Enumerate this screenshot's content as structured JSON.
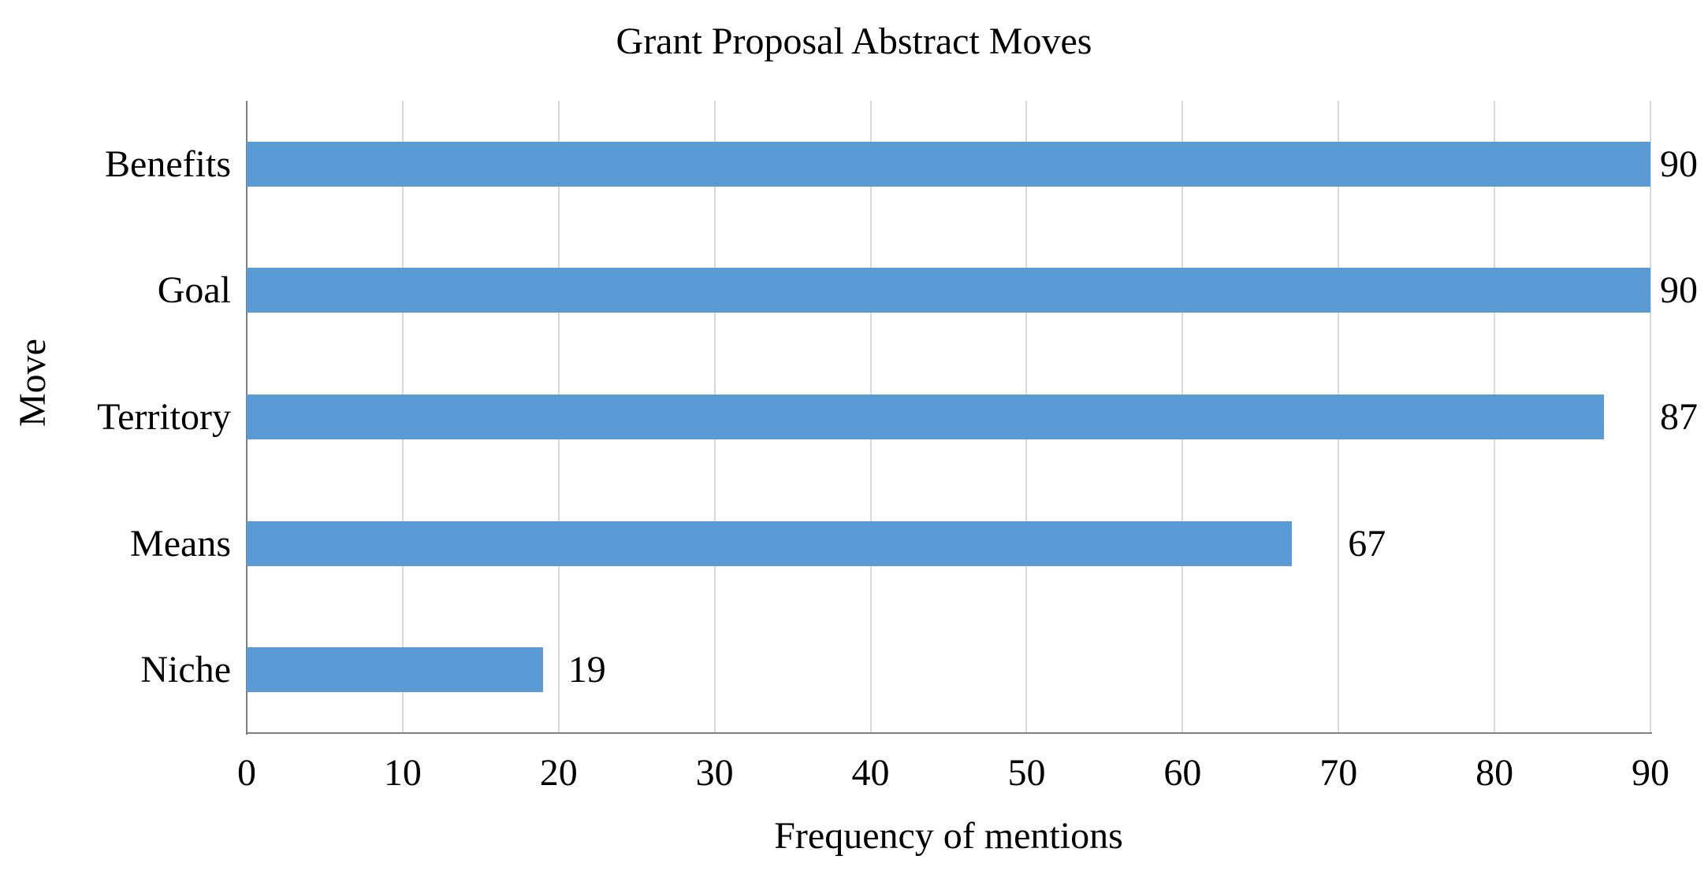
{
  "chart_data": {
    "type": "bar",
    "orientation": "horizontal",
    "title": "Grant Proposal Abstract Moves",
    "categories": [
      "Benefits",
      "Goal",
      "Territory",
      "Means",
      "Niche"
    ],
    "values": [
      90,
      90,
      87,
      67,
      19
    ],
    "data_labels_shown": true,
    "xlabel": "Frequency of mentions",
    "ylabel": "Move",
    "xlim": [
      0,
      90
    ],
    "xticks": [
      0,
      10,
      20,
      30,
      40,
      50,
      60,
      70,
      80,
      90
    ],
    "grid": true,
    "legend": "none",
    "colors": {
      "bar": "#5B9BD5",
      "gridline": "#D9D9D9",
      "axis_line": "#808080",
      "text": "#000000",
      "background": "#FFFFFF"
    }
  }
}
